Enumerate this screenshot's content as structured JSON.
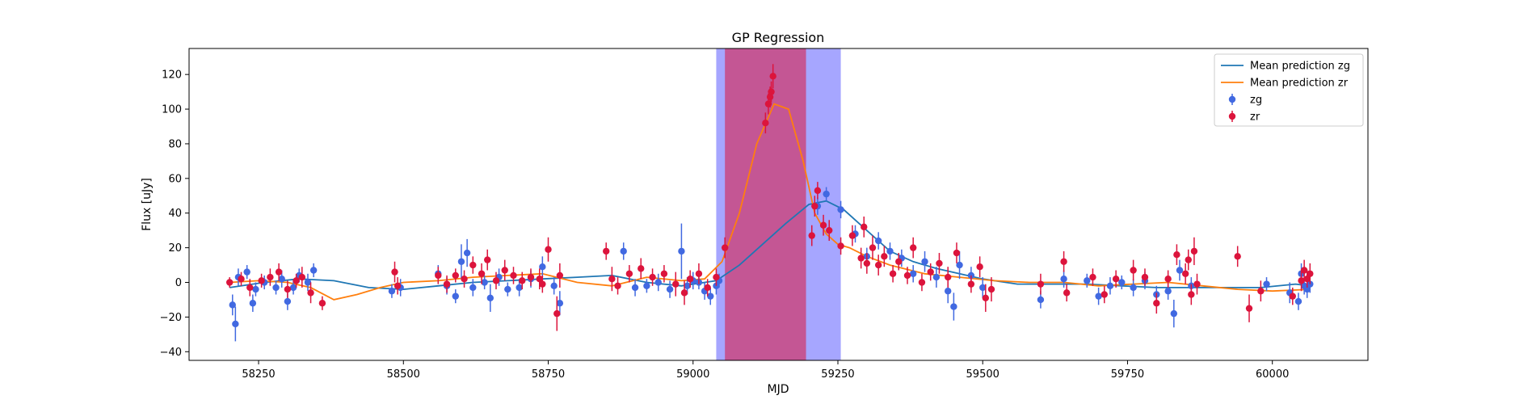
{
  "chart_data": {
    "type": "scatter",
    "title": "GP Regression",
    "xlabel": "MJD",
    "ylabel": "Flux [uJy]",
    "xlim": [
      58130,
      60165
    ],
    "ylim": [
      -45,
      135
    ],
    "x_ticks": [
      58250,
      58500,
      58750,
      59000,
      59250,
      59500,
      59750,
      60000
    ],
    "y_ticks": [
      -40,
      -20,
      0,
      20,
      40,
      60,
      80,
      100,
      120
    ],
    "legend_position": "top-right",
    "spans": [
      {
        "name": "zg",
        "x_range": [
          59040,
          59255
        ],
        "color": "#0000ff",
        "alpha": 0.35
      },
      {
        "name": "zr",
        "x_range": [
          59055,
          59195
        ],
        "color": "#dc143c",
        "alpha": 0.55
      }
    ],
    "lines": [
      {
        "name": "Mean prediction zg",
        "color": "#1f77b4",
        "x": [
          58200,
          58260,
          58320,
          58380,
          58440,
          58500,
          58560,
          58620,
          58680,
          58740,
          58800,
          58860,
          58920,
          58980,
          59040,
          59080,
          59120,
          59160,
          59200,
          59230,
          59260,
          59300,
          59340,
          59380,
          59420,
          59460,
          59500,
          59560,
          59620,
          59680,
          59740,
          59800,
          59860,
          59920,
          59980,
          60040,
          60065
        ],
        "y": [
          -3,
          0,
          2,
          1,
          -3,
          -4,
          -2,
          0,
          1,
          2,
          3,
          4,
          0,
          -2,
          1,
          10,
          22,
          34,
          45,
          47,
          42,
          30,
          18,
          12,
          8,
          5,
          2,
          -1,
          -1,
          -1,
          -2,
          -3,
          -3,
          -3,
          -3,
          -1,
          -2
        ]
      },
      {
        "name": "Mean prediction zr",
        "color": "#ff7f0e",
        "x": [
          58200,
          58250,
          58300,
          58340,
          58380,
          58420,
          58460,
          58500,
          58560,
          58620,
          58680,
          58740,
          58800,
          58860,
          58920,
          58980,
          59020,
          59050,
          59080,
          59110,
          59140,
          59165,
          59190,
          59210,
          59230,
          59250,
          59270,
          59300,
          59340,
          59400,
          59460,
          59520,
          59580,
          59640,
          59700,
          59760,
          59820,
          59880,
          59940,
          60000,
          60065
        ],
        "y": [
          0,
          1,
          0,
          -3,
          -10,
          -7,
          -3,
          0,
          1,
          3,
          4,
          5,
          0,
          -2,
          3,
          1,
          2,
          12,
          40,
          80,
          103,
          100,
          70,
          40,
          28,
          22,
          20,
          15,
          10,
          5,
          3,
          1,
          0,
          0,
          -2,
          -1,
          0,
          -2,
          -4,
          -5,
          -4
        ]
      }
    ],
    "series": [
      {
        "name": "zg",
        "color": "#4169e1",
        "points": [
          [
            58205,
            -13,
            6
          ],
          [
            58210,
            -24,
            10
          ],
          [
            58215,
            3,
            5
          ],
          [
            58230,
            6,
            4
          ],
          [
            58240,
            -12,
            5
          ],
          [
            58245,
            -4,
            4
          ],
          [
            58260,
            0,
            4
          ],
          [
            58280,
            -3,
            4
          ],
          [
            58290,
            2,
            5
          ],
          [
            58300,
            -11,
            5
          ],
          [
            58310,
            -3,
            4
          ],
          [
            58320,
            4,
            4
          ],
          [
            58335,
            0,
            5
          ],
          [
            58345,
            7,
            4
          ],
          [
            58480,
            -5,
            4
          ],
          [
            58495,
            -3,
            5
          ],
          [
            58560,
            5,
            5
          ],
          [
            58575,
            -2,
            5
          ],
          [
            58590,
            -8,
            4
          ],
          [
            58600,
            12,
            10
          ],
          [
            58610,
            17,
            8
          ],
          [
            58620,
            -3,
            5
          ],
          [
            58640,
            0,
            4
          ],
          [
            58650,
            -9,
            8
          ],
          [
            58665,
            3,
            5
          ],
          [
            58680,
            -4,
            4
          ],
          [
            58700,
            -3,
            5
          ],
          [
            58720,
            2,
            5
          ],
          [
            58740,
            9,
            6
          ],
          [
            58760,
            -2,
            5
          ],
          [
            58770,
            -12,
            7
          ],
          [
            58880,
            18,
            5
          ],
          [
            58900,
            -3,
            5
          ],
          [
            58920,
            -2,
            4
          ],
          [
            58940,
            0,
            5
          ],
          [
            58960,
            -4,
            5
          ],
          [
            58980,
            18,
            16
          ],
          [
            58990,
            -2,
            5
          ],
          [
            59000,
            1,
            5
          ],
          [
            59010,
            0,
            4
          ],
          [
            59020,
            -5,
            5
          ],
          [
            59030,
            -8,
            5
          ],
          [
            59040,
            -2,
            5
          ],
          [
            59045,
            1,
            4
          ],
          [
            59215,
            44,
            5
          ],
          [
            59230,
            51,
            4
          ],
          [
            59255,
            42,
            5
          ],
          [
            59280,
            28,
            5
          ],
          [
            59300,
            15,
            5
          ],
          [
            59320,
            24,
            5
          ],
          [
            59340,
            18,
            5
          ],
          [
            59360,
            14,
            5
          ],
          [
            59380,
            5,
            5
          ],
          [
            59400,
            12,
            6
          ],
          [
            59420,
            3,
            6
          ],
          [
            59440,
            -5,
            7
          ],
          [
            59450,
            -14,
            8
          ],
          [
            59460,
            10,
            8
          ],
          [
            59480,
            4,
            5
          ],
          [
            59500,
            -3,
            6
          ],
          [
            59600,
            -10,
            5
          ],
          [
            59640,
            2,
            5
          ],
          [
            59680,
            1,
            4
          ],
          [
            59700,
            -8,
            5
          ],
          [
            59720,
            -2,
            5
          ],
          [
            59740,
            0,
            4
          ],
          [
            59760,
            -3,
            5
          ],
          [
            59780,
            1,
            5
          ],
          [
            59800,
            -7,
            5
          ],
          [
            59820,
            -5,
            5
          ],
          [
            59830,
            -18,
            8
          ],
          [
            59840,
            7,
            6
          ],
          [
            59860,
            -2,
            5
          ],
          [
            59990,
            -1,
            4
          ],
          [
            60030,
            -6,
            6
          ],
          [
            60045,
            -11,
            5
          ],
          [
            60050,
            5,
            6
          ],
          [
            60055,
            -2,
            5
          ],
          [
            60060,
            -4,
            5
          ],
          [
            60065,
            -1,
            5
          ]
        ]
      },
      {
        "name": "zr",
        "color": "#dc143c",
        "points": [
          [
            58200,
            0,
            3
          ],
          [
            58220,
            2,
            4
          ],
          [
            58235,
            -3,
            5
          ],
          [
            58255,
            1,
            4
          ],
          [
            58270,
            3,
            5
          ],
          [
            58285,
            6,
            5
          ],
          [
            58300,
            -4,
            5
          ],
          [
            58315,
            1,
            4
          ],
          [
            58325,
            3,
            6
          ],
          [
            58340,
            -6,
            6
          ],
          [
            58360,
            -12,
            4
          ],
          [
            58485,
            6,
            6
          ],
          [
            58490,
            -2,
            5
          ],
          [
            58560,
            4,
            5
          ],
          [
            58575,
            -1,
            5
          ],
          [
            58590,
            4,
            4
          ],
          [
            58605,
            2,
            5
          ],
          [
            58620,
            10,
            5
          ],
          [
            58635,
            5,
            6
          ],
          [
            58645,
            13,
            6
          ],
          [
            58660,
            1,
            5
          ],
          [
            58675,
            7,
            6
          ],
          [
            58690,
            4,
            5
          ],
          [
            58705,
            1,
            5
          ],
          [
            58720,
            3,
            5
          ],
          [
            58735,
            2,
            6
          ],
          [
            58740,
            -1,
            5
          ],
          [
            58750,
            19,
            7
          ],
          [
            58765,
            -18,
            10
          ],
          [
            58770,
            4,
            7
          ],
          [
            58850,
            18,
            5
          ],
          [
            58860,
            2,
            7
          ],
          [
            58870,
            -2,
            5
          ],
          [
            58890,
            5,
            5
          ],
          [
            58910,
            8,
            6
          ],
          [
            58930,
            3,
            5
          ],
          [
            58950,
            5,
            5
          ],
          [
            58970,
            -1,
            7
          ],
          [
            58985,
            -6,
            7
          ],
          [
            58995,
            2,
            5
          ],
          [
            59010,
            5,
            6
          ],
          [
            59025,
            -3,
            5
          ],
          [
            59040,
            3,
            5
          ],
          [
            59055,
            20,
            6
          ],
          [
            59125,
            92,
            6
          ],
          [
            59130,
            103,
            6
          ],
          [
            59133,
            107,
            6
          ],
          [
            59135,
            110,
            6
          ],
          [
            59138,
            119,
            7
          ],
          [
            59205,
            27,
            6
          ],
          [
            59210,
            44,
            6
          ],
          [
            59215,
            53,
            5
          ],
          [
            59225,
            33,
            6
          ],
          [
            59235,
            30,
            6
          ],
          [
            59255,
            21,
            5
          ],
          [
            59275,
            27,
            6
          ],
          [
            59290,
            14,
            6
          ],
          [
            59295,
            32,
            6
          ],
          [
            59300,
            11,
            6
          ],
          [
            59310,
            20,
            7
          ],
          [
            59320,
            10,
            6
          ],
          [
            59330,
            15,
            6
          ],
          [
            59345,
            5,
            5
          ],
          [
            59355,
            12,
            5
          ],
          [
            59370,
            4,
            5
          ],
          [
            59380,
            20,
            6
          ],
          [
            59395,
            0,
            5
          ],
          [
            59410,
            6,
            5
          ],
          [
            59425,
            11,
            6
          ],
          [
            59440,
            3,
            6
          ],
          [
            59455,
            17,
            6
          ],
          [
            59480,
            -1,
            5
          ],
          [
            59495,
            9,
            6
          ],
          [
            59505,
            -9,
            8
          ],
          [
            59515,
            -4,
            7
          ],
          [
            59600,
            -1,
            6
          ],
          [
            59640,
            12,
            6
          ],
          [
            59645,
            -6,
            5
          ],
          [
            59690,
            3,
            5
          ],
          [
            59710,
            -7,
            5
          ],
          [
            59730,
            2,
            5
          ],
          [
            59760,
            7,
            6
          ],
          [
            59780,
            3,
            5
          ],
          [
            59800,
            -12,
            6
          ],
          [
            59820,
            2,
            5
          ],
          [
            59835,
            16,
            6
          ],
          [
            59850,
            5,
            6
          ],
          [
            59855,
            13,
            6
          ],
          [
            59860,
            -7,
            6
          ],
          [
            59865,
            18,
            8
          ],
          [
            59870,
            -1,
            6
          ],
          [
            59940,
            15,
            6
          ],
          [
            59960,
            -15,
            8
          ],
          [
            59980,
            -5,
            6
          ],
          [
            60035,
            -8,
            5
          ],
          [
            60050,
            1,
            6
          ],
          [
            60055,
            7,
            6
          ],
          [
            60060,
            2,
            5
          ],
          [
            60065,
            5,
            6
          ]
        ]
      }
    ]
  }
}
